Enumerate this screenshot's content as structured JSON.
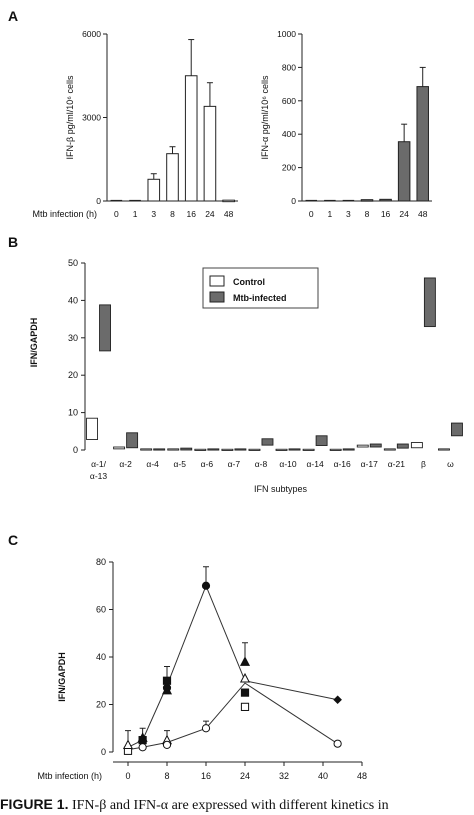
{
  "panels": {
    "a": "A",
    "b": "B",
    "c": "C"
  },
  "chart_data": [
    {
      "id": "A-left",
      "type": "bar",
      "ylabel": "IFN-β pg/ml/10⁶ cells",
      "ylim": [
        0,
        6000
      ],
      "yticks": [
        "0",
        "3000",
        "6000"
      ],
      "xlabel": "Mtb infection (h)",
      "categories": [
        "0",
        "1",
        "3",
        "8",
        "16",
        "24",
        "48"
      ],
      "values": [
        0,
        0,
        780,
        1700,
        4500,
        3400,
        30
      ],
      "errors": [
        0,
        0,
        200,
        250,
        1300,
        850,
        0
      ],
      "bar_color": "#ffffff"
    },
    {
      "id": "A-right",
      "type": "bar",
      "ylabel": "IFN-α pg/ml/10⁶ cells",
      "ylim": [
        0,
        1000
      ],
      "yticks": [
        "0",
        "200",
        "400",
        "600",
        "800",
        "1000"
      ],
      "categories": [
        "0",
        "1",
        "3",
        "8",
        "16",
        "24",
        "48"
      ],
      "values": [
        0,
        0,
        0,
        8,
        10,
        355,
        685
      ],
      "errors": [
        0,
        0,
        0,
        0,
        0,
        105,
        115
      ],
      "bar_color": "#6b6b6b"
    },
    {
      "id": "B",
      "type": "bar",
      "ylabel": "IFN/GAPDH",
      "xlabel": "IFN subtypes",
      "ylim": [
        0,
        50
      ],
      "yticks": [
        "0",
        "10",
        "20",
        "30",
        "40",
        "50"
      ],
      "categories": [
        "α-1/\nα-13",
        "α-2",
        "α-4",
        "α-5",
        "α-6",
        "α-7",
        "α-8",
        "α-10",
        "α-14",
        "α-16",
        "α-17",
        "α-21",
        "β",
        "ω"
      ],
      "legend": {
        "position": "top-center",
        "entries": [
          "Control",
          "Mtb-infected"
        ]
      },
      "series": [
        {
          "name": "Control",
          "color": "#ffffff",
          "ranges": [
            [
              2.8,
              8.5
            ],
            [
              0.3,
              0.8
            ],
            [
              0,
              0.3
            ],
            [
              0,
              0.3
            ],
            [
              0,
              0.2
            ],
            [
              0,
              0.2
            ],
            [
              0,
              0.2
            ],
            [
              0,
              0.2
            ],
            [
              0,
              0.2
            ],
            [
              0,
              0.2
            ],
            [
              0.8,
              1.3
            ],
            [
              0,
              0.3
            ],
            [
              0.6,
              2.0
            ],
            [
              0,
              0.3
            ]
          ]
        },
        {
          "name": "Mtb-infected",
          "color": "#6b6b6b",
          "ranges": [
            [
              26.5,
              38.8
            ],
            [
              0.6,
              4.6
            ],
            [
              0,
              0.3
            ],
            [
              0,
              0.5
            ],
            [
              0,
              0.3
            ],
            [
              0,
              0.3
            ],
            [
              1.3,
              3.0
            ],
            [
              0,
              0.3
            ],
            [
              1.2,
              3.8
            ],
            [
              0,
              0.3
            ],
            [
              0.8,
              1.6
            ],
            [
              0.5,
              1.6
            ],
            [
              33,
              46
            ],
            [
              3.8,
              7.2
            ]
          ]
        }
      ]
    },
    {
      "id": "C",
      "type": "line",
      "ylabel": "IFN/GAPDH",
      "xlabel": "Mtb infection (h)",
      "xlim": [
        0,
        48
      ],
      "ylim": [
        0,
        80
      ],
      "xticks": [
        "0",
        "8",
        "16",
        "24",
        "32",
        "40",
        "48"
      ],
      "yticks": [
        "0",
        "20",
        "40",
        "60",
        "80"
      ],
      "lines": [
        {
          "points": [
            [
              0,
              2
            ],
            [
              3,
              5
            ],
            [
              8,
              28
            ],
            [
              16,
              70
            ],
            [
              24,
              30
            ],
            [
              43,
              22
            ]
          ]
        },
        {
          "points": [
            [
              0,
              1
            ],
            [
              3,
              2
            ],
            [
              8,
              4
            ],
            [
              16,
              10
            ],
            [
              24,
              29
            ],
            [
              43,
              3.5
            ]
          ]
        }
      ],
      "markers": [
        {
          "shape": "circle",
          "fill": "black",
          "x": 0,
          "y": 1.5,
          "err": 0
        },
        {
          "shape": "square",
          "fill": "black",
          "x": 3,
          "y": 5,
          "err": 0
        },
        {
          "shape": "triangle",
          "fill": "black",
          "x": 3,
          "y": 6,
          "err": 4
        },
        {
          "shape": "square",
          "fill": "black",
          "x": 8,
          "y": 30,
          "err": 6
        },
        {
          "shape": "circle",
          "fill": "black",
          "x": 8,
          "y": 27,
          "err": 0
        },
        {
          "shape": "triangle",
          "fill": "black",
          "x": 8,
          "y": 26,
          "err": 0
        },
        {
          "shape": "circle",
          "fill": "black",
          "x": 16,
          "y": 70,
          "err": 8
        },
        {
          "shape": "triangle",
          "fill": "black",
          "x": 24,
          "y": 38,
          "err": 8
        },
        {
          "shape": "square",
          "fill": "black",
          "x": 24,
          "y": 25,
          "err": 0
        },
        {
          "shape": "diamond",
          "fill": "black",
          "x": 43,
          "y": 22,
          "err": 0
        },
        {
          "shape": "circle",
          "fill": "white",
          "x": 0,
          "y": 1,
          "err": 8
        },
        {
          "shape": "square",
          "fill": "white",
          "x": 0,
          "y": 0.5,
          "err": 0
        },
        {
          "shape": "triangle",
          "fill": "white",
          "x": 0,
          "y": 3,
          "err": 0
        },
        {
          "shape": "circle",
          "fill": "white",
          "x": 3,
          "y": 2,
          "err": 0
        },
        {
          "shape": "triangle",
          "fill": "white",
          "x": 8,
          "y": 5,
          "err": 4
        },
        {
          "shape": "circle",
          "fill": "white",
          "x": 8,
          "y": 3,
          "err": 0
        },
        {
          "shape": "circle",
          "fill": "white",
          "x": 16,
          "y": 10,
          "err": 3
        },
        {
          "shape": "square",
          "fill": "white",
          "x": 24,
          "y": 19,
          "err": 0
        },
        {
          "shape": "triangle",
          "fill": "white",
          "x": 24,
          "y": 31,
          "err": 0
        },
        {
          "shape": "circle",
          "fill": "white",
          "x": 43,
          "y": 3.5,
          "err": 0
        }
      ]
    }
  ],
  "caption": {
    "label": "FIGURE 1.",
    "text": "IFN-β and IFN-α are expressed with different kinetics in"
  }
}
